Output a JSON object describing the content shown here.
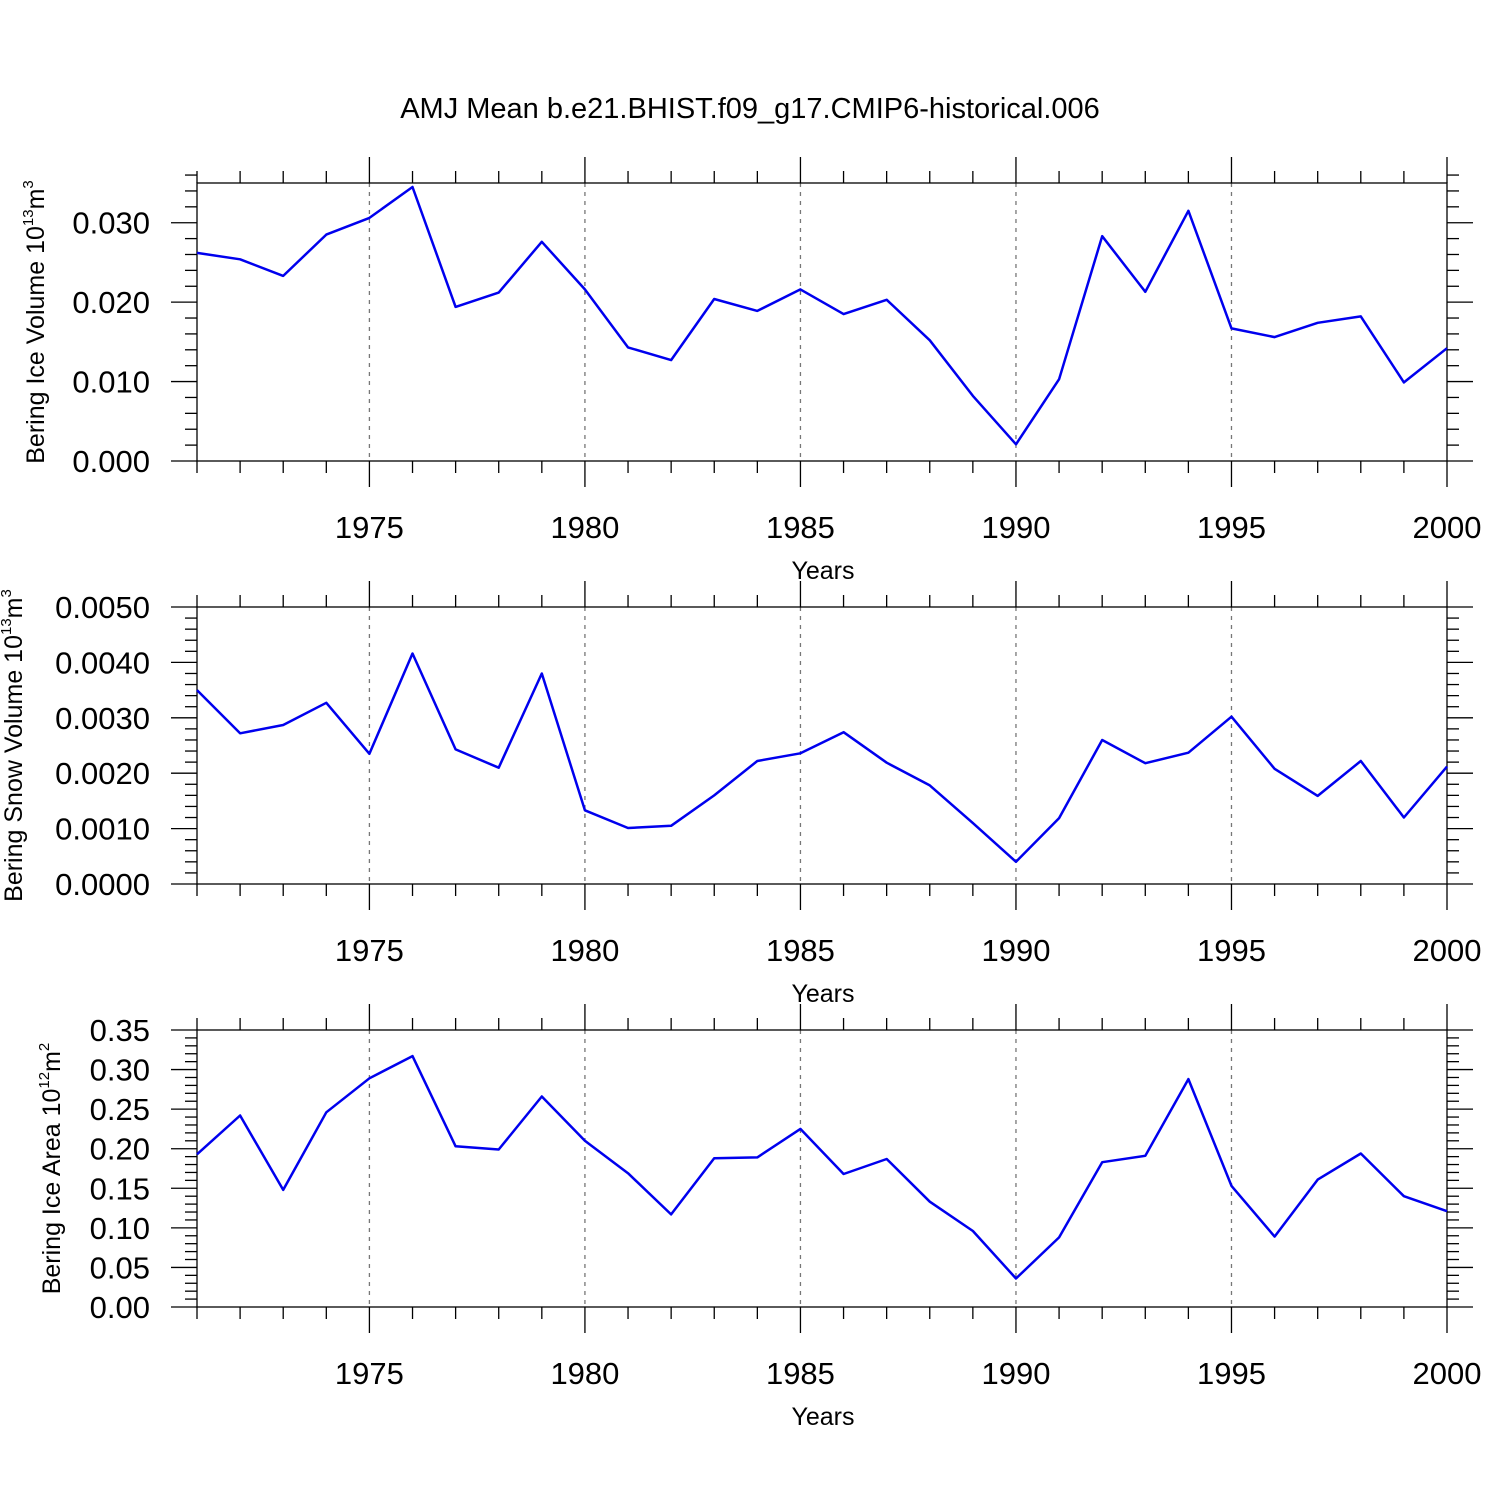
{
  "figure": {
    "title": "AMJ Mean b.e21.BHIST.f09_g17.CMIP6-historical.006"
  },
  "colors": {
    "line": "#0000ee",
    "axis": "#000000",
    "grid": "#777777"
  },
  "chart_data": [
    {
      "type": "line",
      "ylabel": "Bering Ice Volume 10",
      "ylabel_exponent": "13",
      "ylabel_unit": "m",
      "ylabel_unit_exponent": "3",
      "xlabel": "Years",
      "xlim": [
        1971,
        2000
      ],
      "ylim": [
        0,
        0.035
      ],
      "yticks": [
        0.0,
        0.01,
        0.02,
        0.03
      ],
      "ytick_labels": [
        "0.000",
        "0.010",
        "0.020",
        "0.030"
      ],
      "xticks": [
        1975,
        1980,
        1985,
        1990,
        1995,
        2000
      ],
      "xtick_labels": [
        "1975",
        "1980",
        "1985",
        "1990",
        "1995",
        "2000"
      ],
      "grid_x": [
        1975,
        1980,
        1985,
        1990,
        1995
      ],
      "x": [
        1971,
        1972,
        1973,
        1974,
        1975,
        1976,
        1977,
        1978,
        1979,
        1980,
        1981,
        1982,
        1983,
        1984,
        1985,
        1986,
        1987,
        1988,
        1989,
        1990,
        1991,
        1992,
        1993,
        1994,
        1995,
        1996,
        1997,
        1998,
        1999,
        2000
      ],
      "y": [
        0.0262,
        0.0254,
        0.0233,
        0.0285,
        0.0306,
        0.0345,
        0.0194,
        0.0212,
        0.0276,
        0.0216,
        0.0143,
        0.0127,
        0.0204,
        0.0189,
        0.0216,
        0.0185,
        0.0203,
        0.0152,
        0.0082,
        0.0021,
        0.0103,
        0.0283,
        0.0213,
        0.0315,
        0.0167,
        0.0156,
        0.0174,
        0.0182,
        0.0099,
        0.0142
      ]
    },
    {
      "type": "line",
      "ylabel": "Bering Snow Volume 10",
      "ylabel_exponent": "13",
      "ylabel_unit": "m",
      "ylabel_unit_exponent": "3",
      "xlabel": "Years",
      "xlim": [
        1971,
        2000
      ],
      "ylim": [
        0,
        0.005
      ],
      "yticks": [
        0.0,
        0.001,
        0.002,
        0.003,
        0.004,
        0.005
      ],
      "ytick_labels": [
        "0.0000",
        "0.0010",
        "0.0020",
        "0.0030",
        "0.0040",
        "0.0050"
      ],
      "xticks": [
        1975,
        1980,
        1985,
        1990,
        1995,
        2000
      ],
      "xtick_labels": [
        "1975",
        "1980",
        "1985",
        "1990",
        "1995",
        "2000"
      ],
      "grid_x": [
        1975,
        1980,
        1985,
        1990,
        1995
      ],
      "x": [
        1971,
        1972,
        1973,
        1974,
        1975,
        1976,
        1977,
        1978,
        1979,
        1980,
        1981,
        1982,
        1983,
        1984,
        1985,
        1986,
        1987,
        1988,
        1989,
        1990,
        1991,
        1992,
        1993,
        1994,
        1995,
        1996,
        1997,
        1998,
        1999,
        2000
      ],
      "y": [
        0.0035,
        0.00272,
        0.00287,
        0.00327,
        0.00235,
        0.00416,
        0.00243,
        0.0021,
        0.0038,
        0.00133,
        0.00101,
        0.00105,
        0.0016,
        0.00222,
        0.00236,
        0.00274,
        0.00219,
        0.00178,
        0.0011,
        0.0004,
        0.00119,
        0.0026,
        0.00218,
        0.00237,
        0.00302,
        0.00208,
        0.00159,
        0.00222,
        0.0012,
        0.00212
      ]
    },
    {
      "type": "line",
      "ylabel": "Bering Ice Area 10",
      "ylabel_exponent": "12",
      "ylabel_unit": "m",
      "ylabel_unit_exponent": "2",
      "xlabel": "Years",
      "xlim": [
        1971,
        2000
      ],
      "ylim": [
        0,
        0.35
      ],
      "yticks": [
        0.0,
        0.05,
        0.1,
        0.15,
        0.2,
        0.25,
        0.3,
        0.35
      ],
      "ytick_labels": [
        "0.00",
        "0.05",
        "0.10",
        "0.15",
        "0.20",
        "0.25",
        "0.30",
        "0.35"
      ],
      "xticks": [
        1975,
        1980,
        1985,
        1990,
        1995,
        2000
      ],
      "xtick_labels": [
        "1975",
        "1980",
        "1985",
        "1990",
        "1995",
        "2000"
      ],
      "grid_x": [
        1975,
        1980,
        1985,
        1990,
        1995
      ],
      "x": [
        1971,
        1972,
        1973,
        1974,
        1975,
        1976,
        1977,
        1978,
        1979,
        1980,
        1981,
        1982,
        1983,
        1984,
        1985,
        1986,
        1987,
        1988,
        1989,
        1990,
        1991,
        1992,
        1993,
        1994,
        1995,
        1996,
        1997,
        1998,
        1999,
        2000
      ],
      "y": [
        0.193,
        0.242,
        0.148,
        0.246,
        0.289,
        0.317,
        0.203,
        0.199,
        0.266,
        0.21,
        0.169,
        0.117,
        0.188,
        0.189,
        0.225,
        0.168,
        0.187,
        0.133,
        0.096,
        0.036,
        0.088,
        0.183,
        0.191,
        0.288,
        0.153,
        0.089,
        0.161,
        0.194,
        0.14,
        0.121
      ]
    }
  ]
}
